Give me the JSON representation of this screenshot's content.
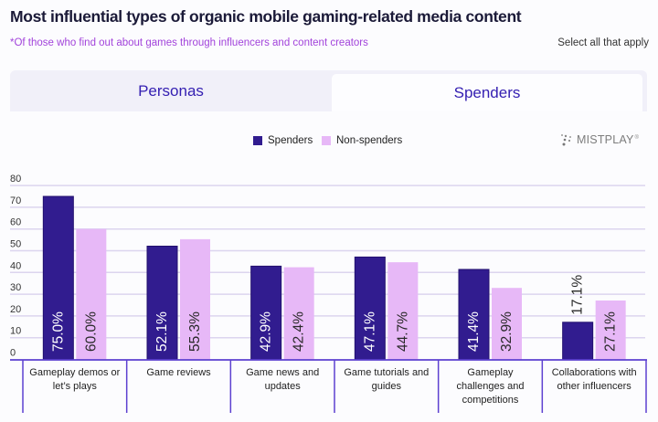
{
  "tabs": [
    {
      "label": "Personas",
      "active": false
    },
    {
      "label": "Spenders",
      "active": true
    }
  ],
  "logo": {
    "text": "MISTPLAY",
    "mark": "®",
    "icon": "dots-icon"
  },
  "colors": {
    "title": "#1b1a38",
    "subtitle": "#a243db",
    "tab_text": "#3520b2",
    "spenders": "#311c8f",
    "non_spenders": "#e7b8f7",
    "grid": "#dcd5ef",
    "axis": "#5d40d0"
  },
  "chart_data": {
    "type": "bar",
    "title": "Most influential types of organic mobile gaming-related media content",
    "subtitle": "*Of those who find out about games through influencers and content creators",
    "note": "Select all that apply",
    "xlabel": "",
    "ylabel": "",
    "categories": [
      "Gameplay demos or let’s plays",
      "Game reviews",
      "Game news and updates",
      "Game tutorials and guides",
      "Gameplay challenges and competitions",
      "Collaborations with other influencers"
    ],
    "tick_label_lines": [
      [
        "Gameplay demos or",
        "let’s plays"
      ],
      [
        "Game reviews"
      ],
      [
        "Game news and",
        "updates"
      ],
      [
        "Game tutorials and",
        "guides"
      ],
      [
        "Gameplay",
        "challenges and",
        "competitions"
      ],
      [
        "Collaborations with",
        "other influencers"
      ]
    ],
    "series": [
      {
        "name": "Spenders",
        "color": "#311c8f",
        "label_color": "#ffffff",
        "values": [
          75.0,
          52.1,
          42.9,
          47.1,
          41.4,
          17.1
        ],
        "labels": [
          "75.0%",
          "52.1%",
          "42.9%",
          "47.1%",
          "41.4%",
          "17.1%"
        ]
      },
      {
        "name": "Non-spenders",
        "color": "#e7b8f7",
        "label_color": "#2a2a2a",
        "values": [
          60.0,
          55.3,
          42.4,
          44.7,
          32.9,
          27.1
        ],
        "labels": [
          "60.0%",
          "55.3%",
          "42.4%",
          "44.7%",
          "32.9%",
          "27.1%"
        ]
      }
    ],
    "ylim": [
      0,
      80
    ],
    "y_ticks": [
      "0",
      "10",
      "20",
      "30",
      "40",
      "50",
      "60",
      "70",
      "80"
    ],
    "grid": true,
    "legend": "top-center"
  }
}
